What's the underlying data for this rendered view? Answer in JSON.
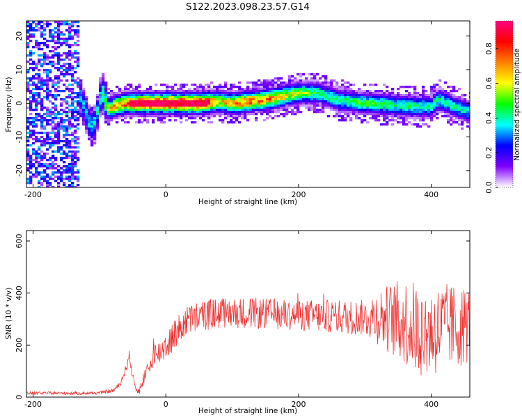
{
  "title": "S122.2023.098.23.57.G14",
  "chart_data": [
    {
      "type": "heatmap",
      "xlabel": "Height of straight line (km)",
      "ylabel": "Frequency (Hz)",
      "xlim": [
        -210,
        458
      ],
      "ylim": [
        -25,
        24.5
      ],
      "xticks": [
        -200,
        0,
        200,
        400
      ],
      "yticks": [
        -20,
        -10,
        0,
        10,
        20
      ],
      "colorbar": {
        "label": "Normalized spectral amplitude",
        "range": [
          0,
          0.96
        ],
        "ticks": [
          0.0,
          0.2,
          0.4,
          0.6,
          0.8
        ],
        "colors": [
          "#ffffff",
          "#8000ff",
          "#0000ff",
          "#00ffff",
          "#00ff00",
          "#ffff00",
          "#ff8000",
          "#ff0000",
          "#ff0080"
        ]
      },
      "ridge": {
        "x": [
          -140,
          -130,
          -125,
          -120,
          -115,
          -110,
          -105,
          -100,
          -95,
          -90,
          -85,
          -80,
          -60,
          -40,
          0,
          50,
          80,
          100,
          150,
          175,
          200,
          230,
          260,
          300,
          340,
          380,
          400,
          410,
          420,
          440,
          458
        ],
        "y": [
          6,
          3,
          0,
          -3,
          -6,
          -7,
          -5,
          1,
          3,
          0,
          -2,
          -1,
          0,
          0,
          0,
          0,
          0.5,
          0,
          1,
          2,
          3,
          3,
          1,
          0,
          -0.5,
          -1,
          -1,
          1,
          0.5,
          -1.5,
          -2.5
        ]
      },
      "peak_amplitude_along_ridge": {
        "x": [
          -130,
          -100,
          -80,
          -40,
          0,
          60,
          80,
          120,
          160,
          200,
          240,
          300,
          350,
          400,
          458
        ],
        "value": [
          0.35,
          0.4,
          0.7,
          0.92,
          0.95,
          0.95,
          0.65,
          0.8,
          0.75,
          0.6,
          0.45,
          0.5,
          0.45,
          0.45,
          0.4
        ]
      }
    },
    {
      "type": "line",
      "xlabel": "Height of straight line (km)",
      "ylabel": "SNR (10 * v/v)",
      "xlim": [
        -210,
        458
      ],
      "ylim": [
        0,
        640
      ],
      "xticks": [
        -200,
        0,
        200,
        400
      ],
      "yticks": [
        0,
        200,
        400,
        600
      ],
      "color": "#ee3333",
      "series": [
        {
          "x": [
            -210,
            -180,
            -150,
            -120,
            -100,
            -80,
            -70,
            -62,
            -58,
            -55,
            -50,
            -45,
            -40,
            -35,
            -30,
            -22,
            -18,
            -15,
            -10,
            0,
            10,
            20,
            30,
            50,
            70,
            100,
            150,
            200,
            250,
            300,
            320,
            340,
            360,
            380,
            400,
            420,
            440,
            458
          ],
          "values": [
            15,
            15,
            15,
            15,
            16,
            25,
            45,
            95,
            130,
            160,
            80,
            30,
            25,
            60,
            90,
            120,
            200,
            150,
            170,
            200,
            230,
            260,
            290,
            310,
            320,
            325,
            320,
            315,
            310,
            305,
            310,
            300,
            290,
            260,
            250,
            270,
            270,
            280
          ],
          "spread": [
            6,
            6,
            6,
            6,
            6,
            8,
            10,
            14,
            20,
            20,
            15,
            12,
            14,
            25,
            30,
            40,
            60,
            50,
            50,
            60,
            60,
            60,
            60,
            60,
            60,
            60,
            60,
            60,
            65,
            70,
            110,
            140,
            170,
            180,
            180,
            170,
            160,
            150
          ]
        }
      ]
    }
  ]
}
